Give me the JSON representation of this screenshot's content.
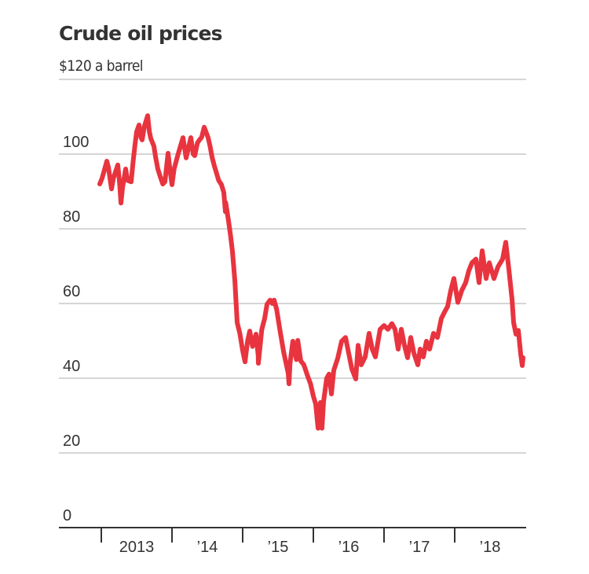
{
  "chart_data": {
    "type": "line",
    "title": "Crude oil prices",
    "subtitle": "$120 a barrel",
    "xlabel": "",
    "ylabel": "$ a barrel",
    "ylim": [
      0,
      120
    ],
    "xlim": [
      2012.6,
      2018.9
    ],
    "grid": true,
    "legend": "none",
    "line_color": "#E8343F",
    "grid_color": "#C8C8C8",
    "axis_color": "#333333",
    "y_ticks": [
      {
        "value": 0,
        "label": "0"
      },
      {
        "value": 20,
        "label": "20"
      },
      {
        "value": 40,
        "label": "40"
      },
      {
        "value": 60,
        "label": "60"
      },
      {
        "value": 80,
        "label": "80"
      },
      {
        "value": 100,
        "label": "100"
      },
      {
        "value": 120,
        "label": ""
      }
    ],
    "x_ticks": [
      2013,
      2014,
      2015,
      2016,
      2017,
      2018
    ],
    "x_labels": [
      {
        "year": 2013,
        "label": "2013"
      },
      {
        "year": 2014,
        "label": "’14"
      },
      {
        "year": 2015,
        "label": "’15"
      },
      {
        "year": 2016,
        "label": "’16"
      },
      {
        "year": 2017,
        "label": "’17"
      },
      {
        "year": 2018,
        "label": "’18"
      }
    ],
    "series": [
      {
        "name": "Crude oil price",
        "points": [
          [
            2012.978,
            92.0
          ],
          [
            2013.01,
            93.5
          ],
          [
            2013.04,
            95.5
          ],
          [
            2013.078,
            98.1
          ],
          [
            2013.1,
            96.5
          ],
          [
            2013.144,
            90.7
          ],
          [
            2013.17,
            93.5
          ],
          [
            2013.233,
            97.1
          ],
          [
            2013.26,
            92.0
          ],
          [
            2013.278,
            86.9
          ],
          [
            2013.3,
            91.0
          ],
          [
            2013.344,
            96.0
          ],
          [
            2013.37,
            93.0
          ],
          [
            2013.422,
            92.6
          ],
          [
            2013.45,
            98.0
          ],
          [
            2013.478,
            102.7
          ],
          [
            2013.5,
            106.0
          ],
          [
            2013.533,
            107.8
          ],
          [
            2013.56,
            104.5
          ],
          [
            2013.578,
            103.8
          ],
          [
            2013.61,
            107.5
          ],
          [
            2013.656,
            110.3
          ],
          [
            2013.68,
            106.0
          ],
          [
            2013.7,
            104.2
          ],
          [
            2013.744,
            102.1
          ],
          [
            2013.77,
            99.0
          ],
          [
            2013.8,
            96.0
          ],
          [
            2013.833,
            94.0
          ],
          [
            2013.87,
            92.0
          ],
          [
            2013.9,
            92.6
          ],
          [
            2013.944,
            100.2
          ],
          [
            2013.97,
            96.0
          ],
          [
            2014.0,
            91.8
          ],
          [
            2014.03,
            96.0
          ],
          [
            2014.078,
            99.4
          ],
          [
            2014.11,
            101.5
          ],
          [
            2014.156,
            104.4
          ],
          [
            2014.2,
            99.0
          ],
          [
            2014.267,
            104.4
          ],
          [
            2014.3,
            100.0
          ],
          [
            2014.322,
            99.6
          ],
          [
            2014.36,
            103.0
          ],
          [
            2014.389,
            103.8
          ],
          [
            2014.42,
            104.5
          ],
          [
            2014.456,
            107.2
          ],
          [
            2014.49,
            105.5
          ],
          [
            2014.511,
            104.4
          ],
          [
            2014.54,
            102.0
          ],
          [
            2014.567,
            99.2
          ],
          [
            2014.6,
            96.8
          ],
          [
            2014.622,
            95.4
          ],
          [
            2014.66,
            93.0
          ],
          [
            2014.7,
            91.8
          ],
          [
            2014.733,
            89.7
          ],
          [
            2014.756,
            84.6
          ],
          [
            2014.76,
            87.0
          ],
          [
            2014.8,
            82.1
          ],
          [
            2014.83,
            78.0
          ],
          [
            2014.856,
            73.9
          ],
          [
            2014.89,
            66.0
          ],
          [
            2014.922,
            54.9
          ],
          [
            2014.96,
            52.0
          ],
          [
            2015.0,
            47.4
          ],
          [
            2015.033,
            44.4
          ],
          [
            2015.07,
            50.0
          ],
          [
            2015.1,
            52.6
          ],
          [
            2015.14,
            48.5
          ],
          [
            2015.189,
            51.8
          ],
          [
            2015.22,
            46.0
          ],
          [
            2015.222,
            44.0
          ],
          [
            2015.27,
            53.0
          ],
          [
            2015.311,
            56.0
          ],
          [
            2015.344,
            59.8
          ],
          [
            2015.389,
            60.9
          ],
          [
            2015.42,
            60.0
          ],
          [
            2015.444,
            60.9
          ],
          [
            2015.48,
            58.5
          ],
          [
            2015.533,
            52.2
          ],
          [
            2015.58,
            47.0
          ],
          [
            2015.644,
            41.3
          ],
          [
            2015.656,
            38.5
          ],
          [
            2015.67,
            44.0
          ],
          [
            2015.71,
            49.9
          ],
          [
            2015.76,
            45.0
          ],
          [
            2015.78,
            50.1
          ],
          [
            2015.822,
            44.6
          ],
          [
            2015.866,
            43.6
          ],
          [
            2015.922,
            40.4
          ],
          [
            2015.96,
            38.5
          ],
          [
            2016.0,
            35.2
          ],
          [
            2016.033,
            33.1
          ],
          [
            2016.067,
            26.6
          ],
          [
            2016.1,
            33.5
          ],
          [
            2016.122,
            26.6
          ],
          [
            2016.144,
            33.7
          ],
          [
            2016.189,
            40.0
          ],
          [
            2016.222,
            41.1
          ],
          [
            2016.256,
            35.8
          ],
          [
            2016.289,
            42.1
          ],
          [
            2016.344,
            45.3
          ],
          [
            2016.4,
            49.9
          ],
          [
            2016.456,
            50.9
          ],
          [
            2016.5,
            46.7
          ],
          [
            2016.544,
            42.5
          ],
          [
            2016.6,
            39.8
          ],
          [
            2016.633,
            48.8
          ],
          [
            2016.678,
            43.6
          ],
          [
            2016.733,
            45.7
          ],
          [
            2016.789,
            52.0
          ],
          [
            2016.833,
            47.8
          ],
          [
            2016.878,
            45.7
          ],
          [
            2016.944,
            53.1
          ],
          [
            2017.0,
            54.1
          ],
          [
            2017.056,
            53.1
          ],
          [
            2017.111,
            54.6
          ],
          [
            2017.156,
            53.1
          ],
          [
            2017.2,
            47.8
          ],
          [
            2017.244,
            53.1
          ],
          [
            2017.289,
            48.8
          ],
          [
            2017.333,
            45.5
          ],
          [
            2017.378,
            50.9
          ],
          [
            2017.422,
            46.7
          ],
          [
            2017.478,
            43.6
          ],
          [
            2017.511,
            47.8
          ],
          [
            2017.556,
            45.7
          ],
          [
            2017.6,
            49.9
          ],
          [
            2017.644,
            47.8
          ],
          [
            2017.7,
            52.0
          ],
          [
            2017.756,
            50.9
          ],
          [
            2017.811,
            56.0
          ],
          [
            2017.867,
            58.1
          ],
          [
            2017.9,
            59.2
          ],
          [
            2017.944,
            63.5
          ],
          [
            2017.989,
            66.7
          ],
          [
            2018.044,
            60.3
          ],
          [
            2018.1,
            63.5
          ],
          [
            2018.156,
            65.6
          ],
          [
            2018.2,
            68.8
          ],
          [
            2018.244,
            70.9
          ],
          [
            2018.3,
            71.9
          ],
          [
            2018.344,
            65.6
          ],
          [
            2018.389,
            74.1
          ],
          [
            2018.444,
            66.7
          ],
          [
            2018.489,
            70.9
          ],
          [
            2018.556,
            66.7
          ],
          [
            2018.611,
            69.8
          ],
          [
            2018.678,
            71.9
          ],
          [
            2018.722,
            76.4
          ],
          [
            2018.767,
            69.1
          ],
          [
            2018.811,
            61.1
          ],
          [
            2018.833,
            54.9
          ],
          [
            2018.867,
            51.8
          ],
          [
            2018.9,
            52.8
          ],
          [
            2018.933,
            46.5
          ],
          [
            2018.956,
            43.4
          ],
          [
            2018.967,
            45.5
          ]
        ]
      }
    ]
  }
}
